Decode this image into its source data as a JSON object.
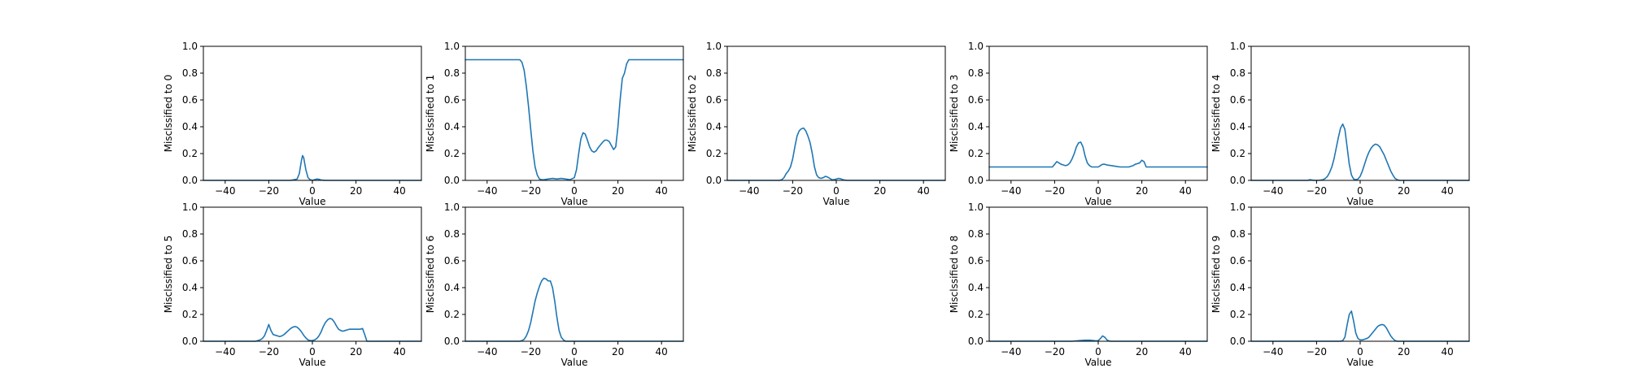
{
  "chart_data": [
    {
      "type": "line",
      "ylabel": "Misclssified to 0",
      "xlabel": "Value",
      "xlim": [
        -50,
        50
      ],
      "ylim": [
        0,
        1
      ],
      "xticks": [
        -40,
        -20,
        0,
        20,
        40
      ],
      "yticks": [
        0.0,
        0.2,
        0.4,
        0.6,
        0.8,
        1.0
      ],
      "color": "#1f77b4",
      "series": [
        {
          "x": [
            -50,
            -10,
            -7,
            -6,
            -5,
            -4.5,
            -4,
            -3,
            -2,
            -1,
            0,
            1,
            2,
            3,
            4,
            5,
            6,
            7,
            50
          ],
          "y": [
            0,
            0,
            0.01,
            0.05,
            0.15,
            0.185,
            0.17,
            0.08,
            0.02,
            0.005,
            0,
            0.005,
            0.01,
            0.008,
            0.003,
            0.001,
            0,
            0,
            0
          ]
        }
      ]
    },
    {
      "type": "line",
      "ylabel": "Misclssified to 1",
      "xlabel": "Value",
      "xlim": [
        -50,
        50
      ],
      "ylim": [
        0,
        1
      ],
      "xticks": [
        -40,
        -20,
        0,
        20,
        40
      ],
      "yticks": [
        0.0,
        0.2,
        0.4,
        0.6,
        0.8,
        1.0
      ],
      "color": "#1f77b4",
      "series": [
        {
          "x": [
            -50,
            -25,
            -24,
            -23,
            -22,
            -21,
            -20,
            -19,
            -18,
            -17,
            -16,
            -15,
            -14,
            -12,
            -10,
            -8,
            -6,
            -4,
            -2,
            0,
            1,
            2,
            3,
            4,
            5,
            6,
            7,
            8,
            9,
            10,
            11,
            12,
            13,
            14,
            15,
            16,
            17,
            18,
            19,
            20,
            21,
            22,
            23,
            24,
            25,
            30,
            50
          ],
          "y": [
            0.9,
            0.9,
            0.88,
            0.82,
            0.7,
            0.55,
            0.38,
            0.22,
            0.1,
            0.04,
            0.01,
            0.005,
            0.005,
            0.01,
            0.015,
            0.01,
            0.015,
            0.01,
            0.005,
            0.02,
            0.08,
            0.2,
            0.31,
            0.355,
            0.345,
            0.3,
            0.25,
            0.22,
            0.21,
            0.22,
            0.245,
            0.265,
            0.285,
            0.3,
            0.3,
            0.29,
            0.26,
            0.23,
            0.25,
            0.4,
            0.6,
            0.76,
            0.8,
            0.87,
            0.9,
            0.9,
            0.9
          ]
        }
      ]
    },
    {
      "type": "line",
      "ylabel": "Misclssified to 2",
      "xlabel": "Value",
      "xlim": [
        -50,
        50
      ],
      "ylim": [
        0,
        1
      ],
      "xticks": [
        -40,
        -20,
        0,
        20,
        40
      ],
      "yticks": [
        0.0,
        0.2,
        0.4,
        0.6,
        0.8,
        1.0
      ],
      "color": "#1f77b4",
      "series": [
        {
          "x": [
            -50,
            -26,
            -25,
            -24,
            -23,
            -22,
            -21,
            -20,
            -19,
            -18,
            -17,
            -16,
            -15,
            -14,
            -13,
            -12,
            -11,
            -10,
            -9,
            -8,
            -7,
            -6,
            -5,
            -4,
            -3,
            -2,
            -1,
            0,
            1,
            2,
            3,
            4,
            5,
            6,
            50
          ],
          "y": [
            0,
            0,
            0.005,
            0.02,
            0.05,
            0.07,
            0.1,
            0.16,
            0.25,
            0.33,
            0.37,
            0.385,
            0.39,
            0.37,
            0.33,
            0.28,
            0.2,
            0.1,
            0.04,
            0.02,
            0.015,
            0.02,
            0.03,
            0.025,
            0.015,
            0.005,
            0.005,
            0.01,
            0.015,
            0.012,
            0.005,
            0.002,
            0,
            0,
            0
          ]
        }
      ]
    },
    {
      "type": "line",
      "ylabel": "Misclssified to 3",
      "xlabel": "Value",
      "xlim": [
        -50,
        50
      ],
      "ylim": [
        0,
        1
      ],
      "xticks": [
        -40,
        -20,
        0,
        20,
        40
      ],
      "yticks": [
        0.0,
        0.2,
        0.4,
        0.6,
        0.8,
        1.0
      ],
      "color": "#1f77b4",
      "series": [
        {
          "x": [
            -50,
            -21,
            -20,
            -19,
            -18,
            -17,
            -16,
            -15,
            -14,
            -13,
            -12,
            -11,
            -10,
            -9,
            -8,
            -7,
            -6,
            -5,
            -4,
            -3,
            -2,
            -1,
            0,
            1,
            2,
            3,
            4,
            6,
            8,
            10,
            12,
            14,
            16,
            17,
            18,
            19,
            20,
            21,
            22,
            30,
            50
          ],
          "y": [
            0.1,
            0.1,
            0.12,
            0.14,
            0.13,
            0.12,
            0.115,
            0.11,
            0.115,
            0.13,
            0.16,
            0.2,
            0.25,
            0.28,
            0.285,
            0.25,
            0.18,
            0.13,
            0.11,
            0.1,
            0.1,
            0.1,
            0.1,
            0.11,
            0.12,
            0.12,
            0.115,
            0.11,
            0.105,
            0.1,
            0.1,
            0.1,
            0.11,
            0.12,
            0.125,
            0.13,
            0.15,
            0.14,
            0.1,
            0.1,
            0.1
          ]
        }
      ]
    },
    {
      "type": "line",
      "ylabel": "Misclssified to 4",
      "xlabel": "Value",
      "xlim": [
        -50,
        50
      ],
      "ylim": [
        0,
        1
      ],
      "xticks": [
        -40,
        -20,
        0,
        20,
        40
      ],
      "yticks": [
        0.0,
        0.2,
        0.4,
        0.6,
        0.8,
        1.0
      ],
      "color": "#1f77b4",
      "series": [
        {
          "x": [
            -50,
            -24,
            -23,
            -22,
            -21,
            -19,
            -17,
            -16,
            -15,
            -14,
            -13,
            -12,
            -11,
            -10,
            -9,
            -8,
            -7,
            -6,
            -5,
            -4,
            -3,
            -2,
            -1,
            0,
            1,
            2,
            3,
            4,
            5,
            6,
            7,
            8,
            9,
            10,
            11,
            12,
            13,
            14,
            15,
            16,
            17,
            18,
            50
          ],
          "y": [
            0,
            0,
            0.005,
            0.002,
            0,
            0,
            0.005,
            0.015,
            0.03,
            0.06,
            0.1,
            0.16,
            0.24,
            0.32,
            0.39,
            0.42,
            0.38,
            0.25,
            0.12,
            0.04,
            0.01,
            0.005,
            0.01,
            0.03,
            0.07,
            0.12,
            0.17,
            0.21,
            0.24,
            0.26,
            0.27,
            0.265,
            0.25,
            0.22,
            0.19,
            0.15,
            0.11,
            0.07,
            0.04,
            0.015,
            0.005,
            0,
            0
          ]
        }
      ]
    },
    {
      "type": "line",
      "ylabel": "Misclssified to 5",
      "xlabel": "Value",
      "xlim": [
        -50,
        50
      ],
      "ylim": [
        0,
        1
      ],
      "xticks": [
        -40,
        -20,
        0,
        20,
        40
      ],
      "yticks": [
        0.0,
        0.2,
        0.4,
        0.6,
        0.8,
        1.0
      ],
      "color": "#1f77b4",
      "series": [
        {
          "x": [
            -50,
            -26,
            -25,
            -24,
            -23,
            -22,
            -21,
            -20,
            -19,
            -18,
            -17,
            -16,
            -15,
            -14,
            -13,
            -12,
            -11,
            -10,
            -9,
            -8,
            -7,
            -6,
            -5,
            -4,
            -3,
            -2,
            -1,
            0,
            1,
            2,
            3,
            4,
            5,
            6,
            7,
            8,
            9,
            10,
            11,
            12,
            13,
            14,
            15,
            16,
            17,
            18,
            20,
            22,
            23,
            24,
            25,
            50
          ],
          "y": [
            0,
            0,
            0.005,
            0.01,
            0.02,
            0.04,
            0.08,
            0.125,
            0.08,
            0.05,
            0.045,
            0.04,
            0.035,
            0.04,
            0.05,
            0.065,
            0.08,
            0.095,
            0.105,
            0.11,
            0.105,
            0.09,
            0.07,
            0.045,
            0.025,
            0.01,
            0.005,
            0.005,
            0.01,
            0.02,
            0.04,
            0.07,
            0.11,
            0.14,
            0.16,
            0.17,
            0.165,
            0.145,
            0.115,
            0.09,
            0.08,
            0.075,
            0.08,
            0.085,
            0.09,
            0.09,
            0.09,
            0.09,
            0.095,
            0.05,
            0,
            0
          ]
        }
      ]
    },
    {
      "type": "line",
      "ylabel": "Misclssified to 6",
      "xlabel": "Value",
      "xlim": [
        -50,
        50
      ],
      "ylim": [
        0,
        1
      ],
      "xticks": [
        -40,
        -20,
        0,
        20,
        40
      ],
      "yticks": [
        0.0,
        0.2,
        0.4,
        0.6,
        0.8,
        1.0
      ],
      "color": "#1f77b4",
      "series": [
        {
          "x": [
            -50,
            -25,
            -24,
            -23,
            -22,
            -21,
            -20,
            -19,
            -18,
            -17,
            -16,
            -15,
            -14,
            -13,
            -12,
            -11,
            -10,
            -9,
            -8,
            -7,
            -6,
            -5,
            -4,
            50
          ],
          "y": [
            0,
            0,
            0.005,
            0.015,
            0.04,
            0.08,
            0.14,
            0.22,
            0.3,
            0.36,
            0.41,
            0.45,
            0.47,
            0.465,
            0.45,
            0.45,
            0.4,
            0.3,
            0.18,
            0.08,
            0.03,
            0.01,
            0,
            0
          ]
        }
      ]
    },
    {
      "type": "line",
      "ylabel": "Misclssified to 8",
      "xlabel": "Value",
      "xlim": [
        -50,
        50
      ],
      "ylim": [
        0,
        1
      ],
      "xticks": [
        -40,
        -20,
        0,
        20,
        40
      ],
      "yticks": [
        0.0,
        0.2,
        0.4,
        0.6,
        0.8,
        1.0
      ],
      "color": "#1f77b4",
      "series": [
        {
          "x": [
            -50,
            -12,
            -10,
            -8,
            -6,
            -4,
            -2,
            -1,
            0,
            1,
            2,
            3,
            4,
            5,
            6,
            50
          ],
          "y": [
            0,
            0,
            0.003,
            0.006,
            0.008,
            0.008,
            0.005,
            0.003,
            0.005,
            0.02,
            0.04,
            0.03,
            0.01,
            0.002,
            0,
            0
          ]
        }
      ]
    },
    {
      "type": "line",
      "ylabel": "Misclssified to 9",
      "xlabel": "Value",
      "xlim": [
        -50,
        50
      ],
      "ylim": [
        0,
        1
      ],
      "xticks": [
        -40,
        -20,
        0,
        20,
        40
      ],
      "yticks": [
        0.0,
        0.2,
        0.4,
        0.6,
        0.8,
        1.0
      ],
      "color": "#1f77b4",
      "series": [
        {
          "x": [
            -50,
            -9,
            -8,
            -7,
            -6,
            -5,
            -4,
            -3,
            -2,
            -1,
            0,
            1,
            2,
            3,
            4,
            5,
            6,
            7,
            8,
            9,
            10,
            11,
            12,
            13,
            14,
            15,
            16,
            17,
            50
          ],
          "y": [
            0,
            0,
            0.005,
            0.03,
            0.12,
            0.2,
            0.225,
            0.15,
            0.06,
            0.02,
            0.01,
            0.01,
            0.015,
            0.02,
            0.03,
            0.05,
            0.07,
            0.09,
            0.11,
            0.12,
            0.125,
            0.12,
            0.1,
            0.07,
            0.04,
            0.02,
            0.005,
            0,
            0
          ]
        }
      ]
    }
  ]
}
